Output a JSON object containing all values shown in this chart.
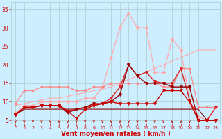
{
  "bg_color": "#cceeff",
  "grid_color": "#aacccc",
  "xlabel": "Vent moyen/en rafales ( km/h )",
  "xlabel_color": "#cc0000",
  "xlabel_fontsize": 6.5,
  "tick_color": "#cc0000",
  "xlim": [
    -0.5,
    23.5
  ],
  "ylim": [
    4,
    37
  ],
  "yticks": [
    5,
    10,
    15,
    20,
    25,
    30,
    35
  ],
  "xticks": [
    0,
    1,
    2,
    3,
    4,
    5,
    6,
    7,
    8,
    9,
    10,
    11,
    12,
    13,
    14,
    15,
    16,
    17,
    18,
    19,
    20,
    21,
    22,
    23
  ],
  "series": [
    {
      "x": [
        0,
        1,
        2,
        3,
        4,
        5,
        6,
        7,
        8,
        9,
        10,
        11,
        12,
        13,
        14,
        15,
        16,
        17,
        18,
        19,
        20,
        21,
        22,
        23
      ],
      "y": [
        9,
        9.5,
        10,
        10.5,
        11,
        11,
        11.5,
        12,
        12.5,
        13,
        13.5,
        14,
        15,
        16,
        17,
        18,
        19,
        20,
        21,
        22,
        23,
        24,
        24,
        24
      ],
      "color": "#ffaaaa",
      "lw": 0.8,
      "marker": null,
      "ms": 0,
      "zorder": 1
    },
    {
      "x": [
        0,
        1,
        2,
        3,
        4,
        5,
        6,
        7,
        8,
        9,
        10,
        11,
        12,
        13,
        14,
        15,
        16,
        17,
        18,
        19,
        20,
        21,
        22,
        23
      ],
      "y": [
        7,
        9,
        9,
        10,
        10,
        10,
        10,
        10,
        11,
        11,
        14,
        22,
        30,
        34,
        30,
        30,
        18,
        18,
        27,
        24,
        10.5,
        6,
        5,
        8.5
      ],
      "color": "#ffaaaa",
      "lw": 0.9,
      "marker": "D",
      "ms": 2.0,
      "zorder": 2
    },
    {
      "x": [
        0,
        1,
        2,
        3,
        4,
        5,
        6,
        7,
        8,
        9,
        10,
        11,
        12,
        13,
        14,
        15,
        16,
        17,
        18,
        19,
        20,
        21,
        22,
        23
      ],
      "y": [
        9.5,
        13,
        13,
        14,
        14,
        14,
        14,
        13,
        13,
        14,
        14,
        15,
        15,
        15,
        15,
        15,
        15,
        14,
        14,
        19,
        19,
        8.5,
        8.5,
        8.5
      ],
      "color": "#ff8888",
      "lw": 0.9,
      "marker": "o",
      "ms": 1.8,
      "zorder": 2
    },
    {
      "x": [
        0,
        1,
        2,
        3,
        4,
        5,
        6,
        7,
        8,
        9,
        10,
        11,
        12,
        13,
        14,
        15,
        16,
        17,
        18,
        19,
        20,
        21,
        22,
        23
      ],
      "y": [
        6.5,
        8.5,
        8.5,
        9,
        9,
        9,
        7.5,
        8,
        8.5,
        9,
        9.5,
        11,
        14,
        20,
        17,
        18,
        15.5,
        15,
        15,
        19,
        10.5,
        5,
        5,
        8.5
      ],
      "color": "#dd2222",
      "lw": 1.0,
      "marker": "v",
      "ms": 2.5,
      "zorder": 3
    },
    {
      "x": [
        0,
        1,
        2,
        3,
        4,
        5,
        6,
        7,
        8,
        9,
        10,
        11,
        12,
        13,
        14,
        15,
        16,
        17,
        18,
        19,
        20,
        21,
        22,
        23
      ],
      "y": [
        6.5,
        8.5,
        8.5,
        9,
        9,
        9,
        7,
        8,
        8.5,
        9.5,
        9.5,
        10,
        12,
        20,
        17,
        15,
        15,
        15,
        14,
        14,
        14,
        5,
        5,
        5
      ],
      "color": "#990000",
      "lw": 1.0,
      "marker": "v",
      "ms": 2.5,
      "zorder": 3
    },
    {
      "x": [
        0,
        1,
        2,
        3,
        4,
        5,
        6,
        7,
        8,
        9,
        10,
        11,
        12,
        13,
        14,
        15,
        16,
        17,
        18,
        19,
        20,
        21,
        22,
        23
      ],
      "y": [
        6.5,
        8.5,
        8.5,
        9,
        9,
        9,
        7.5,
        5.5,
        8,
        9,
        9.5,
        10,
        9.5,
        9.5,
        9.5,
        9.5,
        9.5,
        13,
        13,
        13,
        10,
        5,
        5,
        5
      ],
      "color": "#cc0000",
      "lw": 1.0,
      "marker": "v",
      "ms": 2.5,
      "zorder": 3
    },
    {
      "x": [
        0,
        1,
        2,
        3,
        4,
        5,
        6,
        7,
        8,
        9,
        10,
        11,
        12,
        13,
        14,
        15,
        16,
        17,
        18,
        19,
        20,
        21,
        22,
        23
      ],
      "y": [
        6.5,
        8,
        8,
        8,
        8,
        8,
        8,
        8,
        8,
        8,
        8,
        8,
        8,
        8,
        8,
        8,
        8,
        8,
        8,
        8,
        8,
        8,
        5,
        5
      ],
      "color": "#880000",
      "lw": 0.8,
      "marker": null,
      "ms": 0,
      "zorder": 2
    }
  ],
  "arrow_color": "#cc0000"
}
